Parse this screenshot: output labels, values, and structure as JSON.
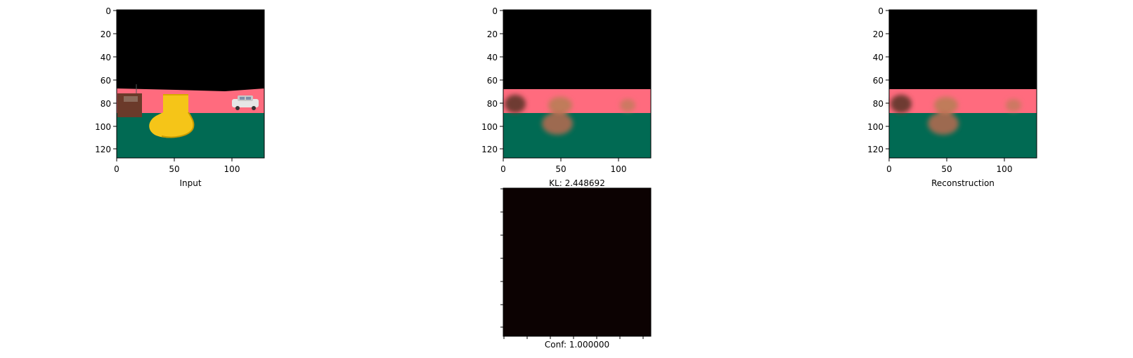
{
  "panels": {
    "input": {
      "xlabel": "Input",
      "xticks": [
        "0",
        "50",
        "100"
      ],
      "yticks": [
        "0",
        "20",
        "40",
        "60",
        "80",
        "100",
        "120"
      ]
    },
    "middle": {
      "xlabel": "KL: 2.448692",
      "xticks": [
        "0",
        "50",
        "100"
      ],
      "yticks": [
        "0",
        "20",
        "40",
        "60",
        "80",
        "100",
        "120"
      ]
    },
    "reconstruction": {
      "xlabel": "Reconstruction",
      "xticks": [
        "0",
        "50",
        "100"
      ],
      "yticks": [
        "0",
        "20",
        "40",
        "60",
        "80",
        "100",
        "120"
      ]
    },
    "confidence": {
      "xlabel": "Conf: 1.000000"
    }
  },
  "colors": {
    "sky": "#000000",
    "road": "#ff6b7e",
    "ground": "#016a53",
    "duck": "#f5c518",
    "confidence_fill": "#0c0202"
  },
  "chart_data": [
    {
      "type": "heatmap",
      "title": "",
      "xlabel": "Input",
      "xlim": [
        0,
        128
      ],
      "ylim": [
        128,
        0
      ],
      "xticks": [
        0,
        50,
        100
      ],
      "yticks": [
        0,
        20,
        40,
        60,
        80,
        100,
        120
      ]
    },
    {
      "type": "heatmap",
      "title": "",
      "xlabel": "KL: 2.448692",
      "xlim": [
        0,
        128
      ],
      "ylim": [
        128,
        0
      ],
      "xticks": [
        0,
        50,
        100
      ],
      "yticks": [
        0,
        20,
        40,
        60,
        80,
        100,
        120
      ]
    },
    {
      "type": "heatmap",
      "title": "",
      "xlabel": "Reconstruction",
      "xlim": [
        0,
        128
      ],
      "ylim": [
        128,
        0
      ],
      "xticks": [
        0,
        50,
        100
      ],
      "yticks": [
        0,
        20,
        40,
        60,
        80,
        100,
        120
      ]
    },
    {
      "type": "heatmap",
      "title": "",
      "xlabel": "Conf: 1.000000",
      "value": 1.0
    }
  ]
}
